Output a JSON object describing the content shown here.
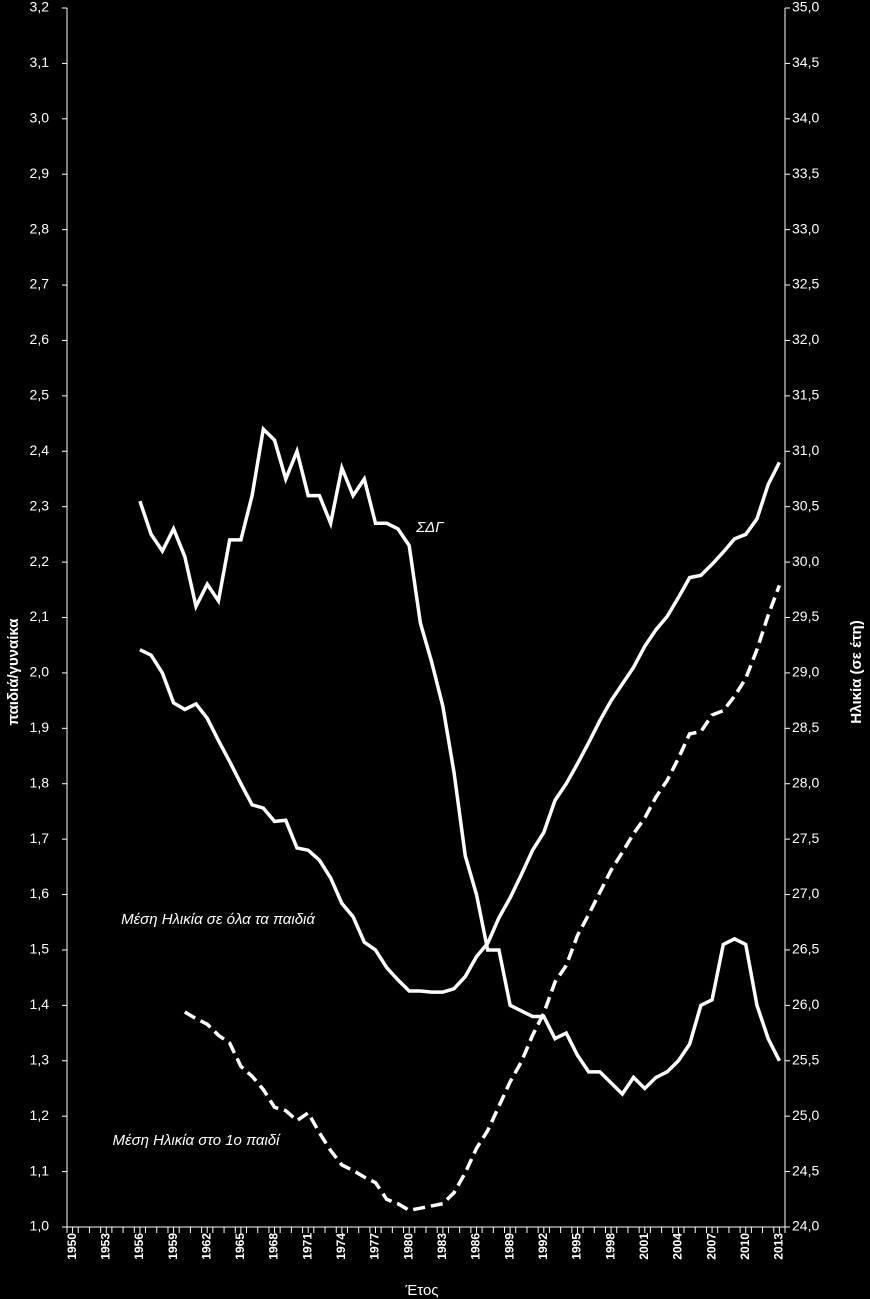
{
  "chart_data": {
    "type": "line",
    "x_label": "Έτος",
    "y_label": "παιδιά/γυναίκα",
    "y2_label": "Ηλικία (σε έτη)",
    "xlim": [
      1949.5,
      2013.5
    ],
    "xticks": [
      1950,
      1953,
      1956,
      1959,
      1962,
      1965,
      1968,
      1971,
      1974,
      1977,
      1980,
      1983,
      1986,
      1989,
      1992,
      1995,
      1998,
      2001,
      2004,
      2007,
      2010,
      2013
    ],
    "ylim": [
      1.0,
      3.2
    ],
    "yticks": [
      {
        "value": 1.0,
        "label": "1,0"
      },
      {
        "value": 1.1,
        "label": "1,1"
      },
      {
        "value": 1.2,
        "label": "1,2"
      },
      {
        "value": 1.3,
        "label": "1,3"
      },
      {
        "value": 1.4,
        "label": "1,4"
      },
      {
        "value": 1.5,
        "label": "1,5"
      },
      {
        "value": 1.6,
        "label": "1,6"
      },
      {
        "value": 1.7,
        "label": "1,7"
      },
      {
        "value": 1.8,
        "label": "1,8"
      },
      {
        "value": 1.9,
        "label": "1,9"
      },
      {
        "value": 2.0,
        "label": "2,0"
      },
      {
        "value": 2.1,
        "label": "2,1"
      },
      {
        "value": 2.2,
        "label": "2,2"
      },
      {
        "value": 2.3,
        "label": "2,3"
      },
      {
        "value": 2.4,
        "label": "2,4"
      },
      {
        "value": 2.5,
        "label": "2,5"
      },
      {
        "value": 2.6,
        "label": "2,6"
      },
      {
        "value": 2.7,
        "label": "2,7"
      },
      {
        "value": 2.8,
        "label": "2,8"
      },
      {
        "value": 2.9,
        "label": "2,9"
      },
      {
        "value": 3.0,
        "label": "3,0"
      },
      {
        "value": 3.1,
        "label": "3,1"
      },
      {
        "value": 3.2,
        "label": "3,2"
      }
    ],
    "y2lim": [
      24.0,
      35.0
    ],
    "y2ticks": [
      {
        "value": 24.0,
        "label": "24,0"
      },
      {
        "value": 24.5,
        "label": "24,5"
      },
      {
        "value": 25.0,
        "label": "25,0"
      },
      {
        "value": 25.5,
        "label": "25,5"
      },
      {
        "value": 26.0,
        "label": "26,0"
      },
      {
        "value": 26.5,
        "label": "26,5"
      },
      {
        "value": 27.0,
        "label": "27,0"
      },
      {
        "value": 27.5,
        "label": "27,5"
      },
      {
        "value": 28.0,
        "label": "28,0"
      },
      {
        "value": 28.5,
        "label": "28,5"
      },
      {
        "value": 29.0,
        "label": "29,0"
      },
      {
        "value": 29.5,
        "label": "29,5"
      },
      {
        "value": 30.0,
        "label": "30,0"
      },
      {
        "value": 30.5,
        "label": "30,5"
      },
      {
        "value": 31.0,
        "label": "31,0"
      },
      {
        "value": 31.5,
        "label": "31,5"
      },
      {
        "value": 32.0,
        "label": "32,0"
      },
      {
        "value": 32.5,
        "label": "32,5"
      },
      {
        "value": 33.0,
        "label": "33,0"
      },
      {
        "value": 33.5,
        "label": "33,5"
      },
      {
        "value": 34.0,
        "label": "34,0"
      },
      {
        "value": 34.5,
        "label": "34,5"
      },
      {
        "value": 35.0,
        "label": "35,0"
      }
    ],
    "series": [
      {
        "name": "ΣΔΓ",
        "color": "#ffffff",
        "dash": false,
        "x": [
          1956,
          1957,
          1958,
          1959,
          1960,
          1961,
          1962,
          1963,
          1964,
          1965,
          1966,
          1967,
          1968,
          1969,
          1970,
          1971,
          1972,
          1973,
          1974,
          1975,
          1976,
          1977,
          1978,
          1979,
          1980,
          1981,
          1982,
          1983,
          1984,
          1985,
          1986,
          1987,
          1988,
          1989,
          1990,
          1991,
          1992,
          1993,
          1994,
          1995,
          1996,
          1997,
          1998,
          1999,
          2000,
          2001,
          2002,
          2003,
          2004,
          2005,
          2006,
          2007,
          2008,
          2009,
          2010,
          2011,
          2012,
          2013
        ],
        "values": [
          2.31,
          2.25,
          2.22,
          2.26,
          2.21,
          2.12,
          2.16,
          2.13,
          2.24,
          2.24,
          2.32,
          2.44,
          2.42,
          2.35,
          2.4,
          2.32,
          2.32,
          2.27,
          2.37,
          2.32,
          2.35,
          2.27,
          2.27,
          2.26,
          2.23,
          2.09,
          2.02,
          1.94,
          1.82,
          1.67,
          1.6,
          1.5,
          1.5,
          1.4,
          1.39,
          1.38,
          1.38,
          1.34,
          1.35,
          1.31,
          1.28,
          1.28,
          1.26,
          1.24,
          1.27,
          1.25,
          1.27,
          1.28,
          1.3,
          1.33,
          1.4,
          1.41,
          1.51,
          1.52,
          1.51,
          1.4,
          1.34,
          1.3
        ]
      },
      {
        "name": "Μέση Ηλικία σε όλα τα παιδιά",
        "color": "#ffffff",
        "dash": false,
        "axis": "y2",
        "x": [
          1956,
          1957,
          1958,
          1959,
          1960,
          1961,
          1962,
          1963,
          1964,
          1965,
          1966,
          1967,
          1968,
          1969,
          1970,
          1971,
          1972,
          1973,
          1974,
          1975,
          1976,
          1977,
          1978,
          1979,
          1980,
          1981,
          1982,
          1983,
          1984,
          1985,
          1986,
          1987,
          1988,
          1989,
          1990,
          1991,
          1992,
          1993,
          1994,
          1995,
          1996,
          1997,
          1998,
          1999,
          2000,
          2001,
          2002,
          2003,
          2004,
          2005,
          2006,
          2007,
          2008,
          2009,
          2010,
          2011,
          2012,
          2013
        ],
        "values": [
          29.21,
          29.16,
          29.0,
          28.73,
          28.67,
          28.72,
          28.59,
          28.39,
          28.2,
          28.0,
          27.81,
          27.78,
          27.66,
          27.67,
          27.42,
          27.4,
          27.31,
          27.15,
          26.92,
          26.8,
          26.57,
          26.5,
          26.34,
          26.23,
          26.13,
          26.13,
          26.12,
          26.12,
          26.15,
          26.26,
          26.44,
          26.56,
          26.79,
          26.97,
          27.18,
          27.4,
          27.56,
          27.85,
          28.0,
          28.18,
          28.37,
          28.57,
          28.75,
          28.9,
          29.05,
          29.24,
          29.39,
          29.51,
          29.68,
          29.86,
          29.88,
          29.98,
          30.09,
          30.21,
          30.25,
          30.39,
          30.7,
          30.9
        ]
      },
      {
        "name": "Μέση Ηλικία στο 1ο παιδί",
        "color": "#ffffff",
        "dash": true,
        "axis": "y2",
        "x": [
          1960,
          1961,
          1962,
          1963,
          1964,
          1965,
          1966,
          1967,
          1968,
          1969,
          1970,
          1971,
          1972,
          1973,
          1974,
          1975,
          1976,
          1977,
          1978,
          1979,
          1980,
          1981,
          1982,
          1983,
          1984,
          1985,
          1986,
          1987,
          1988,
          1989,
          1990,
          1991,
          1992,
          1993,
          1994,
          1995,
          1996,
          1997,
          1998,
          1999,
          2000,
          2001,
          2002,
          2003,
          2004,
          2005,
          2006,
          2007,
          2008,
          2009,
          2010,
          2011,
          2012,
          2013
        ],
        "values": [
          25.94,
          25.88,
          25.83,
          25.73,
          25.66,
          25.45,
          25.36,
          25.24,
          25.08,
          25.05,
          24.96,
          25.03,
          24.85,
          24.69,
          24.56,
          24.51,
          24.45,
          24.4,
          24.25,
          24.21,
          24.15,
          24.17,
          24.19,
          24.21,
          24.31,
          24.49,
          24.71,
          24.87,
          25.09,
          25.31,
          25.49,
          25.73,
          25.93,
          26.21,
          26.36,
          26.63,
          26.82,
          27.02,
          27.22,
          27.38,
          27.55,
          27.69,
          27.88,
          28.03,
          28.23,
          28.45,
          28.47,
          28.62,
          28.66,
          28.79,
          28.95,
          29.21,
          29.52,
          29.79
        ]
      }
    ]
  }
}
